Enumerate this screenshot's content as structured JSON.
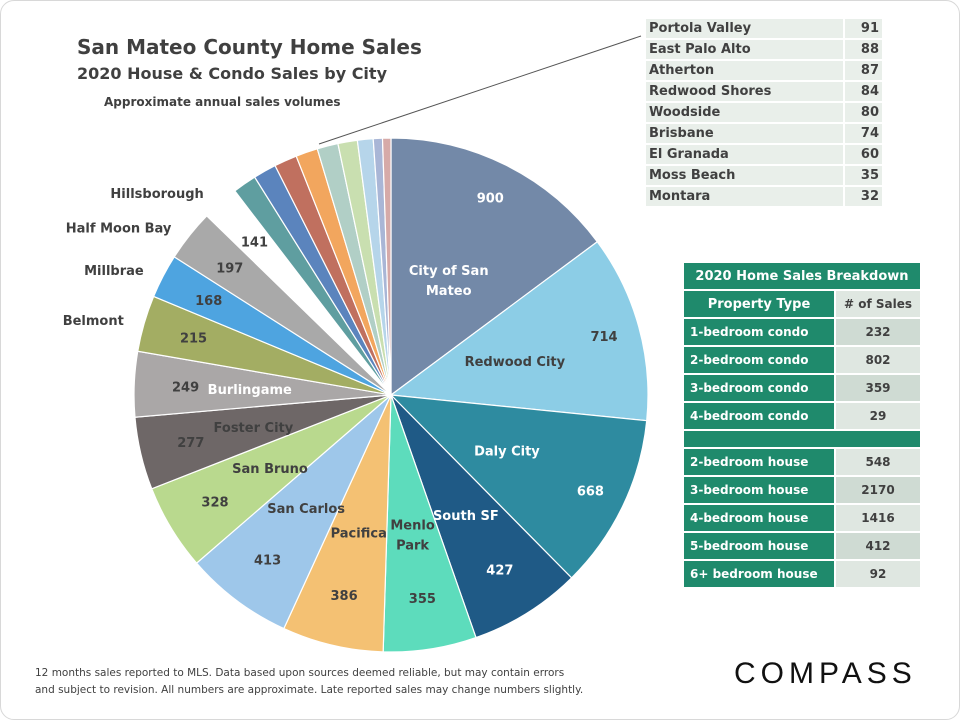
{
  "title": "San Mateo County Home Sales",
  "subtitle": "2020 House  & Condo  Sales by City",
  "note": "Approximate annual sales volumes",
  "chart_data": {
    "type": "pie",
    "title": "San Mateo County Home Sales",
    "categories": [
      "City of San Mateo",
      "Redwood City",
      "Daly City",
      "South SF",
      "Menlo Park",
      "Pacifica",
      "San Carlos",
      "San Bruno",
      "Foster City",
      "Burlingame",
      "Belmont",
      "Millbrae",
      "Half Moon Bay",
      "Hillsborough",
      "Portola Valley",
      "East Palo Alto",
      "Atherton",
      "Redwood Shores",
      "Woodside",
      "Brisbane",
      "El Granada",
      "Moss Beach",
      "Montara"
    ],
    "values": [
      900,
      714,
      668,
      427,
      355,
      386,
      413,
      328,
      277,
      249,
      215,
      168,
      197,
      141,
      91,
      88,
      87,
      84,
      80,
      74,
      60,
      35,
      32
    ],
    "colors": [
      "#7389a8",
      "#8ccde6",
      "#2e8ba0",
      "#1f5a86",
      "#5ddcbc",
      "#f4c173",
      "#9ec7ea",
      "#b9d98e",
      "#6e6767",
      "#aaa7a7",
      "#a3ad63",
      "#4ea4e0",
      "#a9a9a9",
      "#ffffff",
      "#5f9ea0",
      "#5b84bd",
      "#c0705f",
      "#f2a65e",
      "#b1cfc6",
      "#c9dfb0",
      "#b6d5ea",
      "#a9b6d6",
      "#d6aaa8"
    ]
  },
  "small_cities": [
    {
      "name": "Portola Valley",
      "value": "91"
    },
    {
      "name": "East Palo Alto",
      "value": "88"
    },
    {
      "name": "Atherton",
      "value": "87"
    },
    {
      "name": "Redwood Shores",
      "value": "84"
    },
    {
      "name": "Woodside",
      "value": "80"
    },
    {
      "name": "Brisbane",
      "value": "74"
    },
    {
      "name": "El Granada",
      "value": "60"
    },
    {
      "name": "Moss Beach",
      "value": "35"
    },
    {
      "name": "Montara",
      "value": "32"
    }
  ],
  "breakdown": {
    "title": "2020 Home Sales Breakdown",
    "col1": "Property Type",
    "col2": "# of Sales",
    "condos": [
      {
        "type": "1-bedroom condo",
        "sales": "232"
      },
      {
        "type": "2-bedroom condo",
        "sales": "802"
      },
      {
        "type": "3-bedroom condo",
        "sales": "359"
      },
      {
        "type": "4-bedroom condo",
        "sales": "29"
      }
    ],
    "houses": [
      {
        "type": "2-bedroom house",
        "sales": "548"
      },
      {
        "type": "3-bedroom house",
        "sales": "2170"
      },
      {
        "type": "4-bedroom house",
        "sales": "1416"
      },
      {
        "type": "5-bedroom house",
        "sales": "412"
      },
      {
        "type": "6+ bedroom house",
        "sales": "92"
      }
    ]
  },
  "footer": [
    "12 months sales reported to MLS. Data based upon sources deemed reliable, but may contain errors",
    "and subject to revision. All numbers are approximate. Late reported sales may change numbers slightly."
  ],
  "logo": "COMPASS"
}
